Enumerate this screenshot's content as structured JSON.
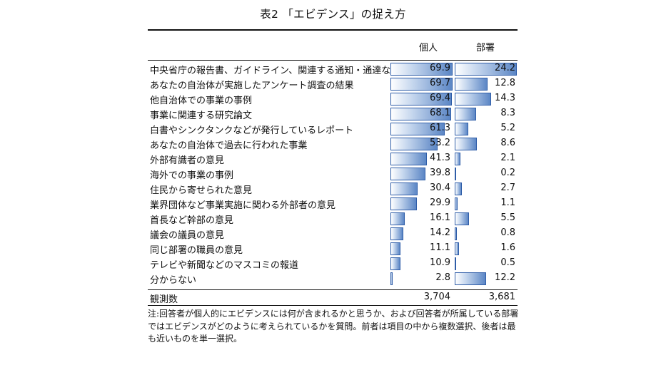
{
  "title": "表2 「エビデンス」の捉え方",
  "columns": {
    "individual": "個人",
    "department": "部署"
  },
  "chart_data": {
    "type": "table",
    "rows": [
      {
        "label": "中央省庁の報告書、ガイドライン、関連する通知・通達など",
        "individual": "69.9",
        "department": "24.2"
      },
      {
        "label": "あなたの自治体が実施したアンケート調査の結果",
        "individual": "69.7",
        "department": "12.8"
      },
      {
        "label": "他自治体での事業の事例",
        "individual": "69.4",
        "department": "14.3"
      },
      {
        "label": "事業に関連する研究論文",
        "individual": "68.1",
        "department": "8.3"
      },
      {
        "label": "白書やシンクタンクなどが発行しているレポート",
        "individual": "61.3",
        "department": "5.2"
      },
      {
        "label": "あなたの自治体で過去に行われた事業",
        "individual": "53.2",
        "department": "8.6"
      },
      {
        "label": "外部有識者の意見",
        "individual": "41.3",
        "department": "2.1"
      },
      {
        "label": "海外での事業の事例",
        "individual": "39.8",
        "department": "0.2"
      },
      {
        "label": "住民から寄せられた意見",
        "individual": "30.4",
        "department": "2.7"
      },
      {
        "label": "業界団体など事業実施に関わる外部者の意見",
        "individual": "29.9",
        "department": "1.1"
      },
      {
        "label": "首長など幹部の意見",
        "individual": "16.1",
        "department": "5.5"
      },
      {
        "label": "議会の議員の意見",
        "individual": "14.2",
        "department": "0.8"
      },
      {
        "label": "同じ部署の職員の意見",
        "individual": "11.1",
        "department": "1.6"
      },
      {
        "label": "テレビや新聞などのマスコミの報道",
        "individual": "10.9",
        "department": "0.5"
      },
      {
        "label": "分からない",
        "individual": "2.8",
        "department": "12.2"
      }
    ]
  },
  "observations": {
    "label": "観測数",
    "individual": "3,704",
    "department": "3,681"
  },
  "note": "注:回答者が個人的にエビデンスには何が含まれるかと思うか、および回答者が所属している部署ではエビデンスがどのように考えられているかを質問。前者は項目の中から複数選択、後者は最も近いものを単一選択。",
  "colors": {
    "bar_fill": "#5b86c5",
    "bar_border": "#2f5da8",
    "rule": "#111111"
  }
}
